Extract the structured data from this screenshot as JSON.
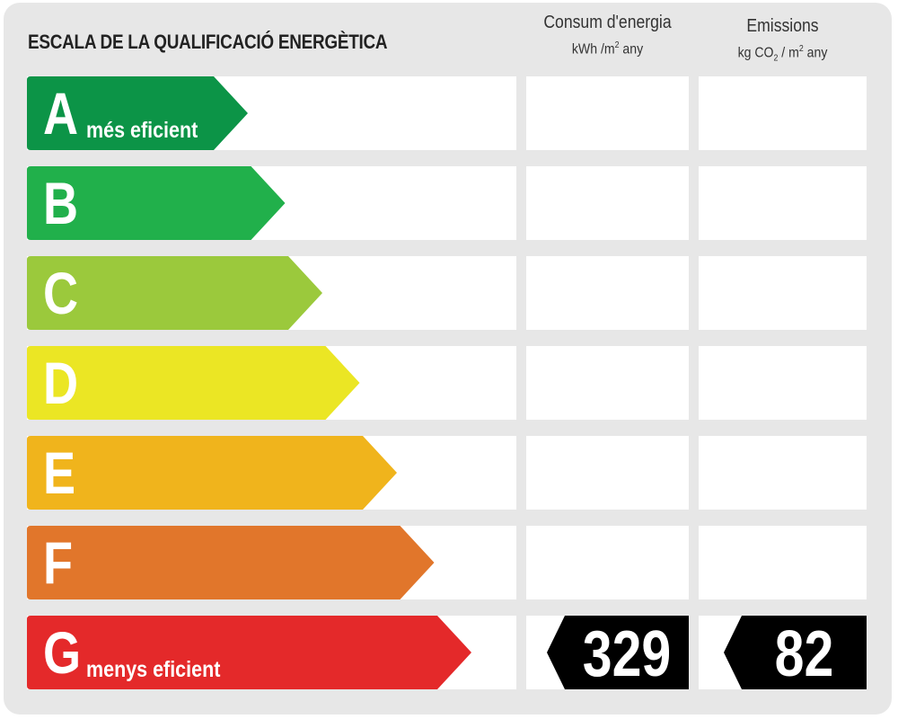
{
  "title": "ESCALA DE LA QUALIFICACIÓ ENERGÈTICA",
  "columns": {
    "energy": {
      "label": "Consum d'energia",
      "unit_main": "kWh /m",
      "unit_sup": "2",
      "unit_after": " any"
    },
    "emissions": {
      "label": "Emissions",
      "unit_pre": "kg CO",
      "unit_sub": "2",
      "unit_mid": " / m",
      "unit_sup": "2",
      "unit_after": " any"
    }
  },
  "ratings": [
    {
      "letter": "A",
      "sublabel": "més eficient",
      "color": "#0c9447"
    },
    {
      "letter": "B",
      "sublabel": "",
      "color": "#21b04b"
    },
    {
      "letter": "C",
      "sublabel": "",
      "color": "#9bc93c"
    },
    {
      "letter": "D",
      "sublabel": "",
      "color": "#ebe624"
    },
    {
      "letter": "E",
      "sublabel": "",
      "color": "#f0b41c"
    },
    {
      "letter": "F",
      "sublabel": "",
      "color": "#e1762b"
    },
    {
      "letter": "G",
      "sublabel": "menys eficient",
      "color": "#e4292a"
    }
  ],
  "result": {
    "rating": "G",
    "energy_value": "329",
    "emissions_value": "82",
    "badge_color": "#000000"
  }
}
